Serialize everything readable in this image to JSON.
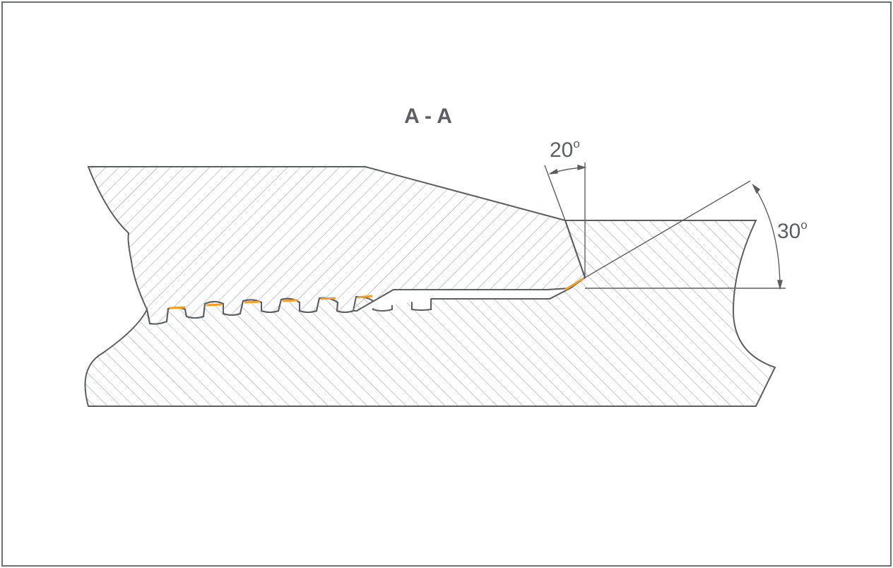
{
  "section_label": "A - A",
  "angles": {
    "upper": {
      "value": "20",
      "unit": "o"
    },
    "lower": {
      "value": "30",
      "unit": "o"
    }
  },
  "colors": {
    "line": "#5b5e62",
    "hatch": "#8a8d91",
    "contact": "#f0a030",
    "frame": "#6d7074",
    "background": "#ffffff"
  }
}
